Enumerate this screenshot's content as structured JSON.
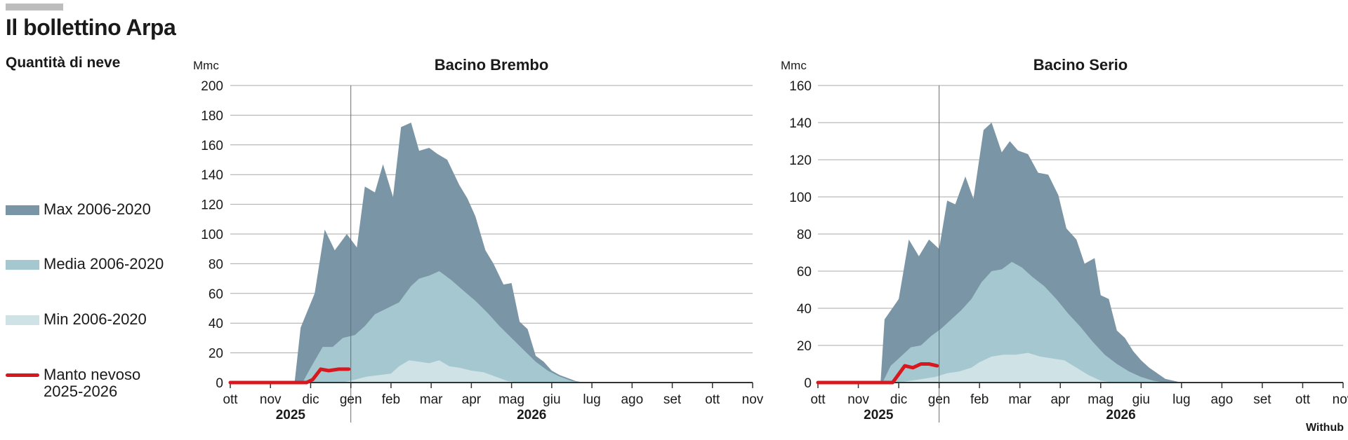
{
  "page": {
    "title": "Il bollettino Arpa",
    "subtitle": "Quantità di neve",
    "source": "Withub"
  },
  "legend": [
    {
      "label": "Max 2006-2020",
      "color": "#7a95a5",
      "kind": "area"
    },
    {
      "label": "Media 2006-2020",
      "color": "#a5c7d0",
      "kind": "area"
    },
    {
      "label": "Min 2006-2020",
      "color": "#cfe2e5",
      "kind": "area"
    },
    {
      "label": "Manto nevoso\n2025-2026",
      "color": "#d7191f",
      "kind": "line"
    }
  ],
  "colors": {
    "max": "#7a95a5",
    "media": "#a5c7d0",
    "min": "#cfe2e5",
    "current": "#d7191f",
    "grid": "#a8a8a8",
    "axis": "#333333"
  },
  "chart_data": [
    {
      "type": "area",
      "title": "Bacino Brembo",
      "ylabel": "Mmc",
      "ylim": [
        0,
        200
      ],
      "yticks": [
        0,
        20,
        40,
        60,
        80,
        100,
        120,
        140,
        160,
        180,
        200
      ],
      "xlim": [
        0,
        13
      ],
      "xtick_labels": [
        "ott",
        "nov",
        "dic",
        "gen",
        "feb",
        "mar",
        "apr",
        "mag",
        "giu",
        "lug",
        "ago",
        "set",
        "ott",
        "nov"
      ],
      "year_labels": [
        {
          "label": "2025",
          "x": 1.5
        },
        {
          "label": "2026",
          "x": 7.5
        }
      ],
      "year_divider_x": 3,
      "grid": true,
      "series": [
        {
          "name": "Max 2006-2020",
          "x": [
            0,
            1.6,
            1.75,
            2.1,
            2.35,
            2.6,
            2.9,
            3.15,
            3.35,
            3.6,
            3.8,
            4.05,
            4.25,
            4.5,
            4.7,
            4.95,
            5.15,
            5.4,
            5.7,
            5.9,
            6.1,
            6.35,
            6.55,
            6.8,
            7.0,
            7.2,
            7.4,
            7.6,
            7.8,
            8.0,
            8.2,
            8.4,
            8.6,
            8.8,
            9.0,
            13
          ],
          "values": [
            0,
            0,
            37,
            60,
            103,
            89,
            100,
            91,
            132,
            128,
            147,
            125,
            172,
            175,
            156,
            158,
            154,
            150,
            133,
            124,
            112,
            89,
            80,
            66,
            67,
            41,
            36,
            18,
            14,
            8,
            5,
            3,
            1,
            0,
            0,
            0
          ]
        },
        {
          "name": "Media 2006-2020",
          "x": [
            0,
            1.8,
            2.0,
            2.3,
            2.55,
            2.8,
            3.1,
            3.35,
            3.6,
            3.9,
            4.2,
            4.5,
            4.7,
            4.95,
            5.2,
            5.5,
            5.8,
            6.1,
            6.4,
            6.7,
            7.0,
            7.3,
            7.6,
            7.9,
            8.2,
            8.5,
            8.8,
            9.0,
            13
          ],
          "values": [
            0,
            0,
            10,
            24,
            24,
            30,
            32,
            38,
            46,
            50,
            54,
            65,
            70,
            72,
            75,
            69,
            62,
            55,
            47,
            38,
            30,
            22,
            14,
            8,
            4,
            1,
            0,
            0,
            0
          ]
        },
        {
          "name": "Min 2006-2020",
          "x": [
            0,
            2.8,
            3.1,
            3.4,
            3.7,
            4.0,
            4.2,
            4.45,
            4.7,
            4.95,
            5.2,
            5.45,
            5.7,
            6.0,
            6.3,
            6.6,
            6.9,
            7.2,
            7.5,
            13
          ],
          "values": [
            0,
            0,
            2,
            4,
            5,
            6,
            11,
            15,
            14,
            13,
            15,
            11,
            10,
            8,
            7,
            4,
            1,
            0,
            0,
            0
          ]
        },
        {
          "name": "Manto nevoso 2025-2026",
          "x": [
            0,
            1.9,
            2.05,
            2.25,
            2.45,
            2.7,
            2.95
          ],
          "values": [
            0,
            0,
            2,
            9,
            8,
            9,
            9
          ]
        }
      ]
    },
    {
      "type": "area",
      "title": "Bacino Serio",
      "ylabel": "Mmc",
      "ylim": [
        0,
        160
      ],
      "yticks": [
        0,
        20,
        40,
        60,
        80,
        100,
        120,
        140,
        160
      ],
      "xlim": [
        0,
        13
      ],
      "xtick_labels": [
        "ott",
        "nov",
        "dic",
        "gen",
        "feb",
        "mar",
        "apr",
        "mag",
        "giu",
        "lug",
        "ago",
        "set",
        "ott",
        "nov"
      ],
      "year_labels": [
        {
          "label": "2025",
          "x": 1.5
        },
        {
          "label": "2026",
          "x": 7.5
        }
      ],
      "year_divider_x": 3,
      "grid": true,
      "series": [
        {
          "name": "Max 2006-2020",
          "x": [
            0,
            1.55,
            1.65,
            2.0,
            2.25,
            2.5,
            2.75,
            3.0,
            3.2,
            3.4,
            3.65,
            3.85,
            4.1,
            4.3,
            4.55,
            4.75,
            4.95,
            5.2,
            5.45,
            5.7,
            5.95,
            6.15,
            6.4,
            6.6,
            6.85,
            7.0,
            7.2,
            7.4,
            7.6,
            7.8,
            8.0,
            8.2,
            8.4,
            8.6,
            8.8,
            9.0,
            9.2,
            13
          ],
          "values": [
            0,
            0,
            34,
            45,
            77,
            68,
            77,
            72,
            98,
            96,
            111,
            99,
            136,
            140,
            124,
            130,
            125,
            123,
            113,
            112,
            101,
            83,
            77,
            64,
            67,
            47,
            45,
            28,
            24,
            17,
            12,
            8,
            5,
            2,
            1,
            0,
            0,
            0
          ]
        },
        {
          "name": "Media 2006-2020",
          "x": [
            0,
            1.6,
            1.8,
            2.0,
            2.3,
            2.55,
            2.8,
            3.05,
            3.3,
            3.55,
            3.8,
            4.05,
            4.3,
            4.55,
            4.8,
            5.05,
            5.3,
            5.6,
            5.9,
            6.2,
            6.5,
            6.8,
            7.1,
            7.4,
            7.7,
            8.0,
            8.3,
            8.6,
            8.9,
            9.1,
            13
          ],
          "values": [
            0,
            0,
            9,
            13,
            19,
            20,
            25,
            29,
            34,
            39,
            45,
            54,
            60,
            61,
            65,
            62,
            57,
            52,
            45,
            37,
            30,
            22,
            15,
            10,
            6,
            3,
            1,
            0,
            0,
            0,
            0
          ]
        },
        {
          "name": "Min 2006-2020",
          "x": [
            0,
            2.0,
            2.3,
            2.6,
            2.9,
            3.2,
            3.5,
            3.8,
            4.0,
            4.3,
            4.6,
            4.9,
            5.2,
            5.5,
            5.8,
            6.1,
            6.4,
            6.7,
            7.0,
            7.3,
            13
          ],
          "values": [
            0,
            0,
            1,
            2,
            3,
            5,
            6,
            8,
            11,
            14,
            15,
            15,
            16,
            14,
            13,
            12,
            8,
            4,
            1,
            0,
            0
          ]
        },
        {
          "name": "Manto nevoso 2025-2026",
          "x": [
            0,
            1.85,
            1.95,
            2.15,
            2.35,
            2.55,
            2.75,
            2.95
          ],
          "values": [
            0,
            0,
            3,
            9,
            8,
            10,
            10,
            9
          ]
        }
      ]
    }
  ]
}
